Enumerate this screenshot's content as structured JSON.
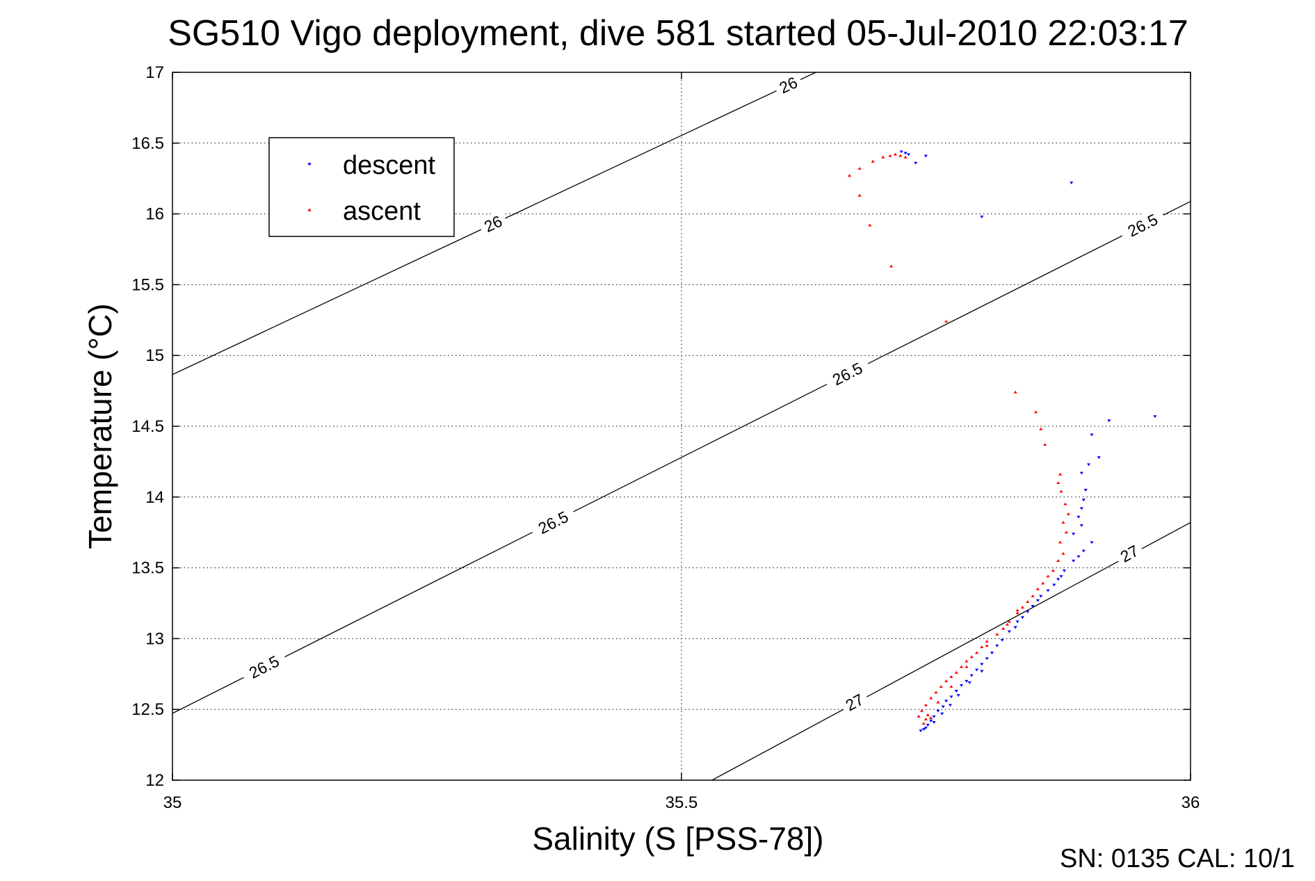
{
  "chart_data": {
    "type": "scatter",
    "title": "SG510 Vigo deployment, dive 581 started 05-Jul-2010 22:03:17",
    "xlabel": "Salinity (S [PSS-78])",
    "ylabel": "Temperature (°C)",
    "xlim": [
      35,
      36
    ],
    "ylim": [
      12,
      17
    ],
    "xticks": [
      35,
      35.5,
      36
    ],
    "xtick_labels": [
      "35",
      "35.5",
      "36"
    ],
    "yticks": [
      12,
      12.5,
      13,
      13.5,
      14,
      14.5,
      15,
      15.5,
      16,
      16.5,
      17
    ],
    "ytick_labels": [
      "12",
      "12.5",
      "13",
      "13.5",
      "14",
      "14.5",
      "15",
      "15.5",
      "16",
      "16.5",
      "17"
    ],
    "grid": true,
    "legend_position": "upper-left",
    "footer": "SN: 0135  CAL: 10/1",
    "series": [
      {
        "name": "descent",
        "color": "#0000ff",
        "marker": "triangle-down",
        "points": [
          [
            35.716,
            16.44
          ],
          [
            35.72,
            16.43
          ],
          [
            35.723,
            16.42
          ],
          [
            35.73,
            16.36
          ],
          [
            35.74,
            16.41
          ],
          [
            35.883,
            16.22
          ],
          [
            35.795,
            15.98
          ],
          [
            35.965,
            14.57
          ],
          [
            35.92,
            14.54
          ],
          [
            35.903,
            14.44
          ],
          [
            35.9,
            14.23
          ],
          [
            35.91,
            14.28
          ],
          [
            35.893,
            14.17
          ],
          [
            35.897,
            14.05
          ],
          [
            35.895,
            13.98
          ],
          [
            35.893,
            13.92
          ],
          [
            35.89,
            13.86
          ],
          [
            35.893,
            13.8
          ],
          [
            35.885,
            13.74
          ],
          [
            35.903,
            13.68
          ],
          [
            35.895,
            13.62
          ],
          [
            35.89,
            13.58
          ],
          [
            35.885,
            13.55
          ],
          [
            35.876,
            13.48
          ],
          [
            35.873,
            13.44
          ],
          [
            35.87,
            13.42
          ],
          [
            35.866,
            13.38
          ],
          [
            35.86,
            13.34
          ],
          [
            35.853,
            13.3
          ],
          [
            35.85,
            13.27
          ],
          [
            35.845,
            13.23
          ],
          [
            35.84,
            13.19
          ],
          [
            35.835,
            13.15
          ],
          [
            35.83,
            13.12
          ],
          [
            35.828,
            13.08
          ],
          [
            35.822,
            13.05
          ],
          [
            35.815,
            12.99
          ],
          [
            35.81,
            12.95
          ],
          [
            35.805,
            12.9
          ],
          [
            35.8,
            12.86
          ],
          [
            35.795,
            12.82
          ],
          [
            35.79,
            12.78
          ],
          [
            35.785,
            12.74
          ],
          [
            35.78,
            12.7
          ],
          [
            35.775,
            12.67
          ],
          [
            35.77,
            12.63
          ],
          [
            35.765,
            12.59
          ],
          [
            35.76,
            12.56
          ],
          [
            35.757,
            12.52
          ],
          [
            35.752,
            12.49
          ],
          [
            35.748,
            12.45
          ],
          [
            35.745,
            12.42
          ],
          [
            35.742,
            12.39
          ],
          [
            35.738,
            12.36
          ],
          [
            35.735,
            12.35
          ],
          [
            35.74,
            12.37
          ],
          [
            35.748,
            12.41
          ],
          [
            35.756,
            12.47
          ],
          [
            35.764,
            12.53
          ],
          [
            35.772,
            12.6
          ],
          [
            35.783,
            12.69
          ],
          [
            35.795,
            12.77
          ]
        ]
      },
      {
        "name": "ascent",
        "color": "#ff0000",
        "marker": "triangle-up",
        "points": [
          [
            35.71,
            16.42
          ],
          [
            35.715,
            16.41
          ],
          [
            35.72,
            16.4
          ],
          [
            35.705,
            16.41
          ],
          [
            35.698,
            16.4
          ],
          [
            35.688,
            16.37
          ],
          [
            35.675,
            16.32
          ],
          [
            35.665,
            16.27
          ],
          [
            35.675,
            16.13
          ],
          [
            35.685,
            15.92
          ],
          [
            35.706,
            15.63
          ],
          [
            35.76,
            15.24
          ],
          [
            35.828,
            14.74
          ],
          [
            35.848,
            14.6
          ],
          [
            35.853,
            14.48
          ],
          [
            35.857,
            14.37
          ],
          [
            35.872,
            14.16
          ],
          [
            35.87,
            14.1
          ],
          [
            35.873,
            14.04
          ],
          [
            35.877,
            13.95
          ],
          [
            35.88,
            13.88
          ],
          [
            35.875,
            13.82
          ],
          [
            35.878,
            13.75
          ],
          [
            35.872,
            13.68
          ],
          [
            35.875,
            13.6
          ],
          [
            35.87,
            13.55
          ],
          [
            35.865,
            13.48
          ],
          [
            35.86,
            13.44
          ],
          [
            35.855,
            13.39
          ],
          [
            35.85,
            13.35
          ],
          [
            35.845,
            13.3
          ],
          [
            35.84,
            13.26
          ],
          [
            35.835,
            13.22
          ],
          [
            35.83,
            13.18
          ],
          [
            35.822,
            13.12
          ],
          [
            35.816,
            13.07
          ],
          [
            35.81,
            13.03
          ],
          [
            35.8,
            12.98
          ],
          [
            35.795,
            12.94
          ],
          [
            35.79,
            12.9
          ],
          [
            35.785,
            12.87
          ],
          [
            35.78,
            12.84
          ],
          [
            35.775,
            12.8
          ],
          [
            35.77,
            12.76
          ],
          [
            35.765,
            12.73
          ],
          [
            35.76,
            12.7
          ],
          [
            35.755,
            12.66
          ],
          [
            35.75,
            12.62
          ],
          [
            35.745,
            12.58
          ],
          [
            35.74,
            12.53
          ],
          [
            35.736,
            12.49
          ],
          [
            35.733,
            12.45
          ],
          [
            35.74,
            12.43
          ],
          [
            35.745,
            12.44
          ],
          [
            35.738,
            12.4
          ],
          [
            35.742,
            12.46
          ],
          [
            35.752,
            12.55
          ],
          [
            35.765,
            12.66
          ],
          [
            35.78,
            12.8
          ],
          [
            35.8,
            12.95
          ],
          [
            35.82,
            13.1
          ],
          [
            35.83,
            13.2
          ]
        ]
      }
    ],
    "contours": [
      {
        "label": "26",
        "x": [
          35,
          35.632
        ],
        "y": [
          14.865,
          17.0
        ],
        "labels_at": [
          [
            35.315,
            15.93
          ],
          [
            35.605,
            16.91
          ]
        ]
      },
      {
        "label": "26.5",
        "x": [
          35,
          36
        ],
        "y": [
          12.472,
          16.088
        ],
        "labels_at": [
          [
            35.09,
            12.8
          ],
          [
            35.374,
            13.82
          ],
          [
            35.663,
            14.87
          ],
          [
            35.953,
            15.92
          ]
        ]
      },
      {
        "label": "27",
        "x": [
          35.53,
          36
        ],
        "y": [
          12.0,
          13.82
        ],
        "labels_at": [
          [
            35.67,
            12.55
          ],
          [
            35.94,
            13.6
          ]
        ]
      }
    ]
  }
}
